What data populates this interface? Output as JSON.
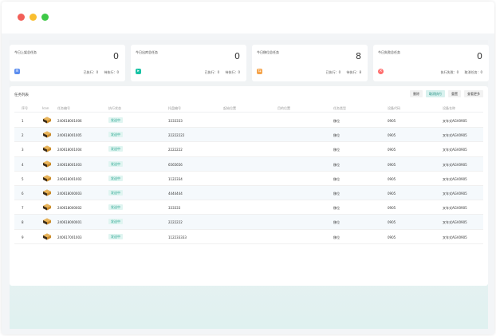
{
  "colors": {
    "accent": "#25a38f",
    "card1_icon": "#5b8def",
    "card2_icon": "#19c3a5",
    "card3_icon": "#f5a34a",
    "card4_icon": "#ff6d6d"
  },
  "cards": [
    {
      "title": "今日上架总任务",
      "value": "0",
      "f1": "已执行：0",
      "f2": "待执行：0",
      "icon": "list-icon"
    },
    {
      "title": "今日出库总任务",
      "value": "0",
      "f1": "已执行：0",
      "f2": "待执行：0",
      "icon": "outbound-icon"
    },
    {
      "title": "今日移位总任务",
      "value": "8",
      "f1": "已执行：0",
      "f2": "待执行：8",
      "icon": "move-icon"
    },
    {
      "title": "今日失败总任务",
      "value": "0",
      "f1": "执行失败：0",
      "f2": "取消任务：0",
      "icon": "error-icon"
    }
  ],
  "panel": {
    "title": "任务列表",
    "buttons": [
      "删除",
      "取消执行",
      "重置",
      "查看更多"
    ]
  },
  "table": {
    "headers": [
      "序号",
      "Icon",
      "任务编号",
      "执行状态",
      "托盘编号",
      "起始位置",
      "目的位置",
      "任务类型",
      "设备代码",
      "设备名称"
    ],
    "rows": [
      [
        "1",
        "240618001006",
        "发送中",
        "3333333",
        "",
        "",
        "移位",
        "0905",
        "叉车式AGV0905"
      ],
      [
        "2",
        "240618001005",
        "发送中",
        "22222222",
        "",
        "",
        "移位",
        "0905",
        "叉车式AGV0905"
      ],
      [
        "3",
        "240618001004",
        "发送中",
        "2222222",
        "",
        "",
        "移位",
        "0905",
        "叉车式AGV0905"
      ],
      [
        "4",
        "240618001003",
        "发送中",
        "6565656",
        "",
        "",
        "移位",
        "0905",
        "叉车式AGV0905"
      ],
      [
        "5",
        "240618001002",
        "发送中",
        "1122334",
        "",
        "",
        "移位",
        "0905",
        "叉车式AGV0905"
      ],
      [
        "6",
        "240618000003",
        "发送中",
        "4444444",
        "",
        "",
        "移位",
        "0905",
        "叉车式AGV0905"
      ],
      [
        "7",
        "240618000002",
        "发送中",
        "333333",
        "",
        "",
        "移位",
        "0905",
        "叉车式AGV0905"
      ],
      [
        "8",
        "240618000001",
        "发送中",
        "2222222",
        "",
        "",
        "移位",
        "0905",
        "叉车式AGV0905"
      ],
      [
        "9",
        "240617001003",
        "发送中",
        "112233333",
        "",
        "",
        "移位",
        "0905",
        "叉车式AGV0905"
      ]
    ]
  }
}
